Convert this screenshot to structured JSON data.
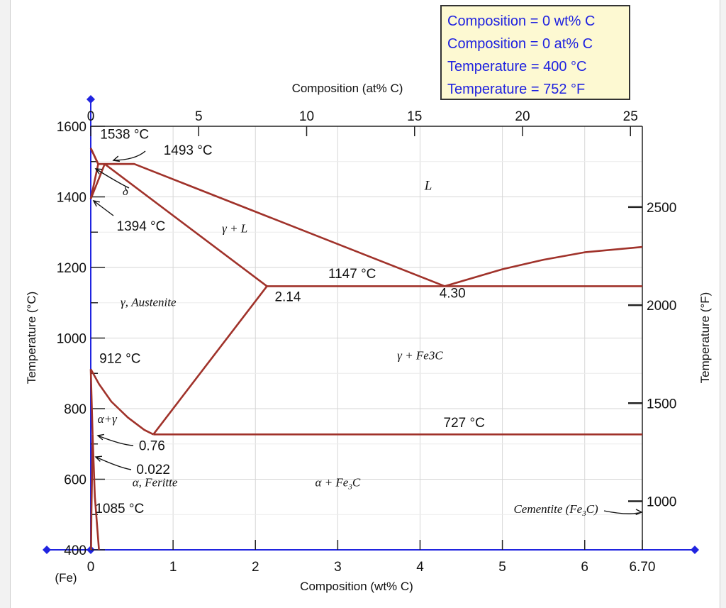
{
  "readout": {
    "line1": "Composition = 0 wt% C",
    "line2": "Composition = 0 at% C",
    "line3": "Temperature = 400 °C",
    "line4": "Temperature = 752 °F",
    "text_color": "#1f22e0"
  },
  "chart_data": {
    "type": "line",
    "title": "",
    "xlabel": "Composition (wt% C)",
    "x2label": "Composition (at% C)",
    "ylabel": "Temperature (°C)",
    "y2label": "Temperature (°F)",
    "xlim": [
      0,
      6.7
    ],
    "ylim": [
      400,
      1600
    ],
    "x_ticks": [
      {
        "v": 0,
        "label": "0"
      },
      {
        "v": 1,
        "label": "1"
      },
      {
        "v": 2,
        "label": "2"
      },
      {
        "v": 3,
        "label": "3"
      },
      {
        "v": 4,
        "label": "4"
      },
      {
        "v": 5,
        "label": "5"
      },
      {
        "v": 6,
        "label": "6"
      },
      {
        "v": 6.7,
        "label": "6.70"
      }
    ],
    "x_origin_label": "(Fe)",
    "y_ticks": [
      400,
      600,
      800,
      1000,
      1200,
      1400,
      1600
    ],
    "top_ticks": [
      {
        "v": 0,
        "label": "0"
      },
      {
        "v": 5,
        "label": "5"
      },
      {
        "v": 10,
        "label": "10"
      },
      {
        "v": 15,
        "label": "15"
      },
      {
        "v": 20,
        "label": "20"
      },
      {
        "v": 25,
        "label": "25"
      }
    ],
    "right_ticks": [
      {
        "v": 1000,
        "label": "1000"
      },
      {
        "v": 1500,
        "label": "1500"
      },
      {
        "v": 2000,
        "label": "2000"
      },
      {
        "v": 2500,
        "label": "2500"
      }
    ],
    "grid": true,
    "line_color": "#a0322a",
    "axis_color": "#2024e0",
    "series": [
      {
        "id": "liquidus-left",
        "x": [
          0,
          0.09,
          0.53,
          4.3
        ],
        "y": [
          1538,
          1493,
          1493,
          1147
        ]
      },
      {
        "id": "liquidus-right",
        "x": [
          4.3,
          5.0,
          5.5,
          6.0,
          6.7
        ],
        "y": [
          1147,
          1195,
          1222,
          1243,
          1258
        ]
      },
      {
        "id": "delta-solidus",
        "x": [
          0,
          0.09
        ],
        "y": [
          1538,
          1493
        ]
      },
      {
        "id": "peritectic-line",
        "x": [
          0.09,
          0.53
        ],
        "y": [
          1493,
          1493
        ]
      },
      {
        "id": "delta-solvus",
        "x": [
          0,
          0.09
        ],
        "y": [
          1394,
          1493
        ]
      },
      {
        "id": "delta-gamma-lower",
        "x": [
          0,
          0.17
        ],
        "y": [
          1394,
          1493
        ]
      },
      {
        "id": "gamma-solidus",
        "x": [
          0.17,
          2.14
        ],
        "y": [
          1493,
          1147
        ]
      },
      {
        "id": "eutectic-line",
        "x": [
          2.14,
          6.7
        ],
        "y": [
          1147,
          1147
        ]
      },
      {
        "id": "acm-line",
        "x": [
          2.14,
          0.76
        ],
        "y": [
          1147,
          727
        ]
      },
      {
        "id": "a3-line",
        "x": [
          0,
          0.1,
          0.25,
          0.45,
          0.65,
          0.76
        ],
        "y": [
          912,
          870,
          820,
          775,
          740,
          727
        ]
      },
      {
        "id": "eutectoid-line",
        "x": [
          0.76,
          6.7
        ],
        "y": [
          727,
          727
        ]
      },
      {
        "id": "alpha-boundary",
        "x": [
          0,
          0.022
        ],
        "y": [
          912,
          727
        ]
      },
      {
        "id": "alpha-solvus",
        "x": [
          0.022,
          0.015,
          0.008,
          0.004
        ],
        "y": [
          727,
          600,
          500,
          400
        ]
      },
      {
        "id": "alpha-solvus-2",
        "x": [
          0.022,
          0.05,
          0.1
        ],
        "y": [
          727,
          550,
          400
        ]
      }
    ],
    "annotations": [
      {
        "text": "1538 °C",
        "x": 0.08,
        "y": 1565
      },
      {
        "text": "1493 °C",
        "x": 0.85,
        "y": 1520
      },
      {
        "text": "1394 °C",
        "x": 0.28,
        "y": 1305
      },
      {
        "text": "1147 °C",
        "x": 2.85,
        "y": 1170
      },
      {
        "text": "2.14",
        "x": 2.2,
        "y": 1105
      },
      {
        "text": "4.30",
        "x": 4.2,
        "y": 1115
      },
      {
        "text": "912 °C",
        "x": 0.07,
        "y": 930
      },
      {
        "text": "727 °C",
        "x": 4.25,
        "y": 748
      },
      {
        "text": "0.76",
        "x": 0.55,
        "y": 682
      },
      {
        "text": "0.022",
        "x": 0.52,
        "y": 615
      },
      {
        "text": "1085 °C",
        "x": 0.02,
        "y": 505
      }
    ],
    "phase_labels": [
      {
        "text": "L",
        "x": 4.1,
        "y": 1420
      },
      {
        "text": "γ + L",
        "x": 1.75,
        "y": 1300
      },
      {
        "text": "γ, Austenite",
        "x": 0.7,
        "y": 1090
      },
      {
        "text": "γ + Fe3C",
        "x": 4.0,
        "y": 940
      },
      {
        "text": "α+γ",
        "x": 0.2,
        "y": 760
      },
      {
        "text": "δ",
        "x": 0.42,
        "y": 1405
      },
      {
        "text": "α, Feritte",
        "x": 0.78,
        "y": 580
      },
      {
        "text": "α + Fe3C",
        "x": 3.0,
        "y": 580
      },
      {
        "text": "Cementite (Fe3C)",
        "x": 5.65,
        "y": 505
      }
    ]
  }
}
